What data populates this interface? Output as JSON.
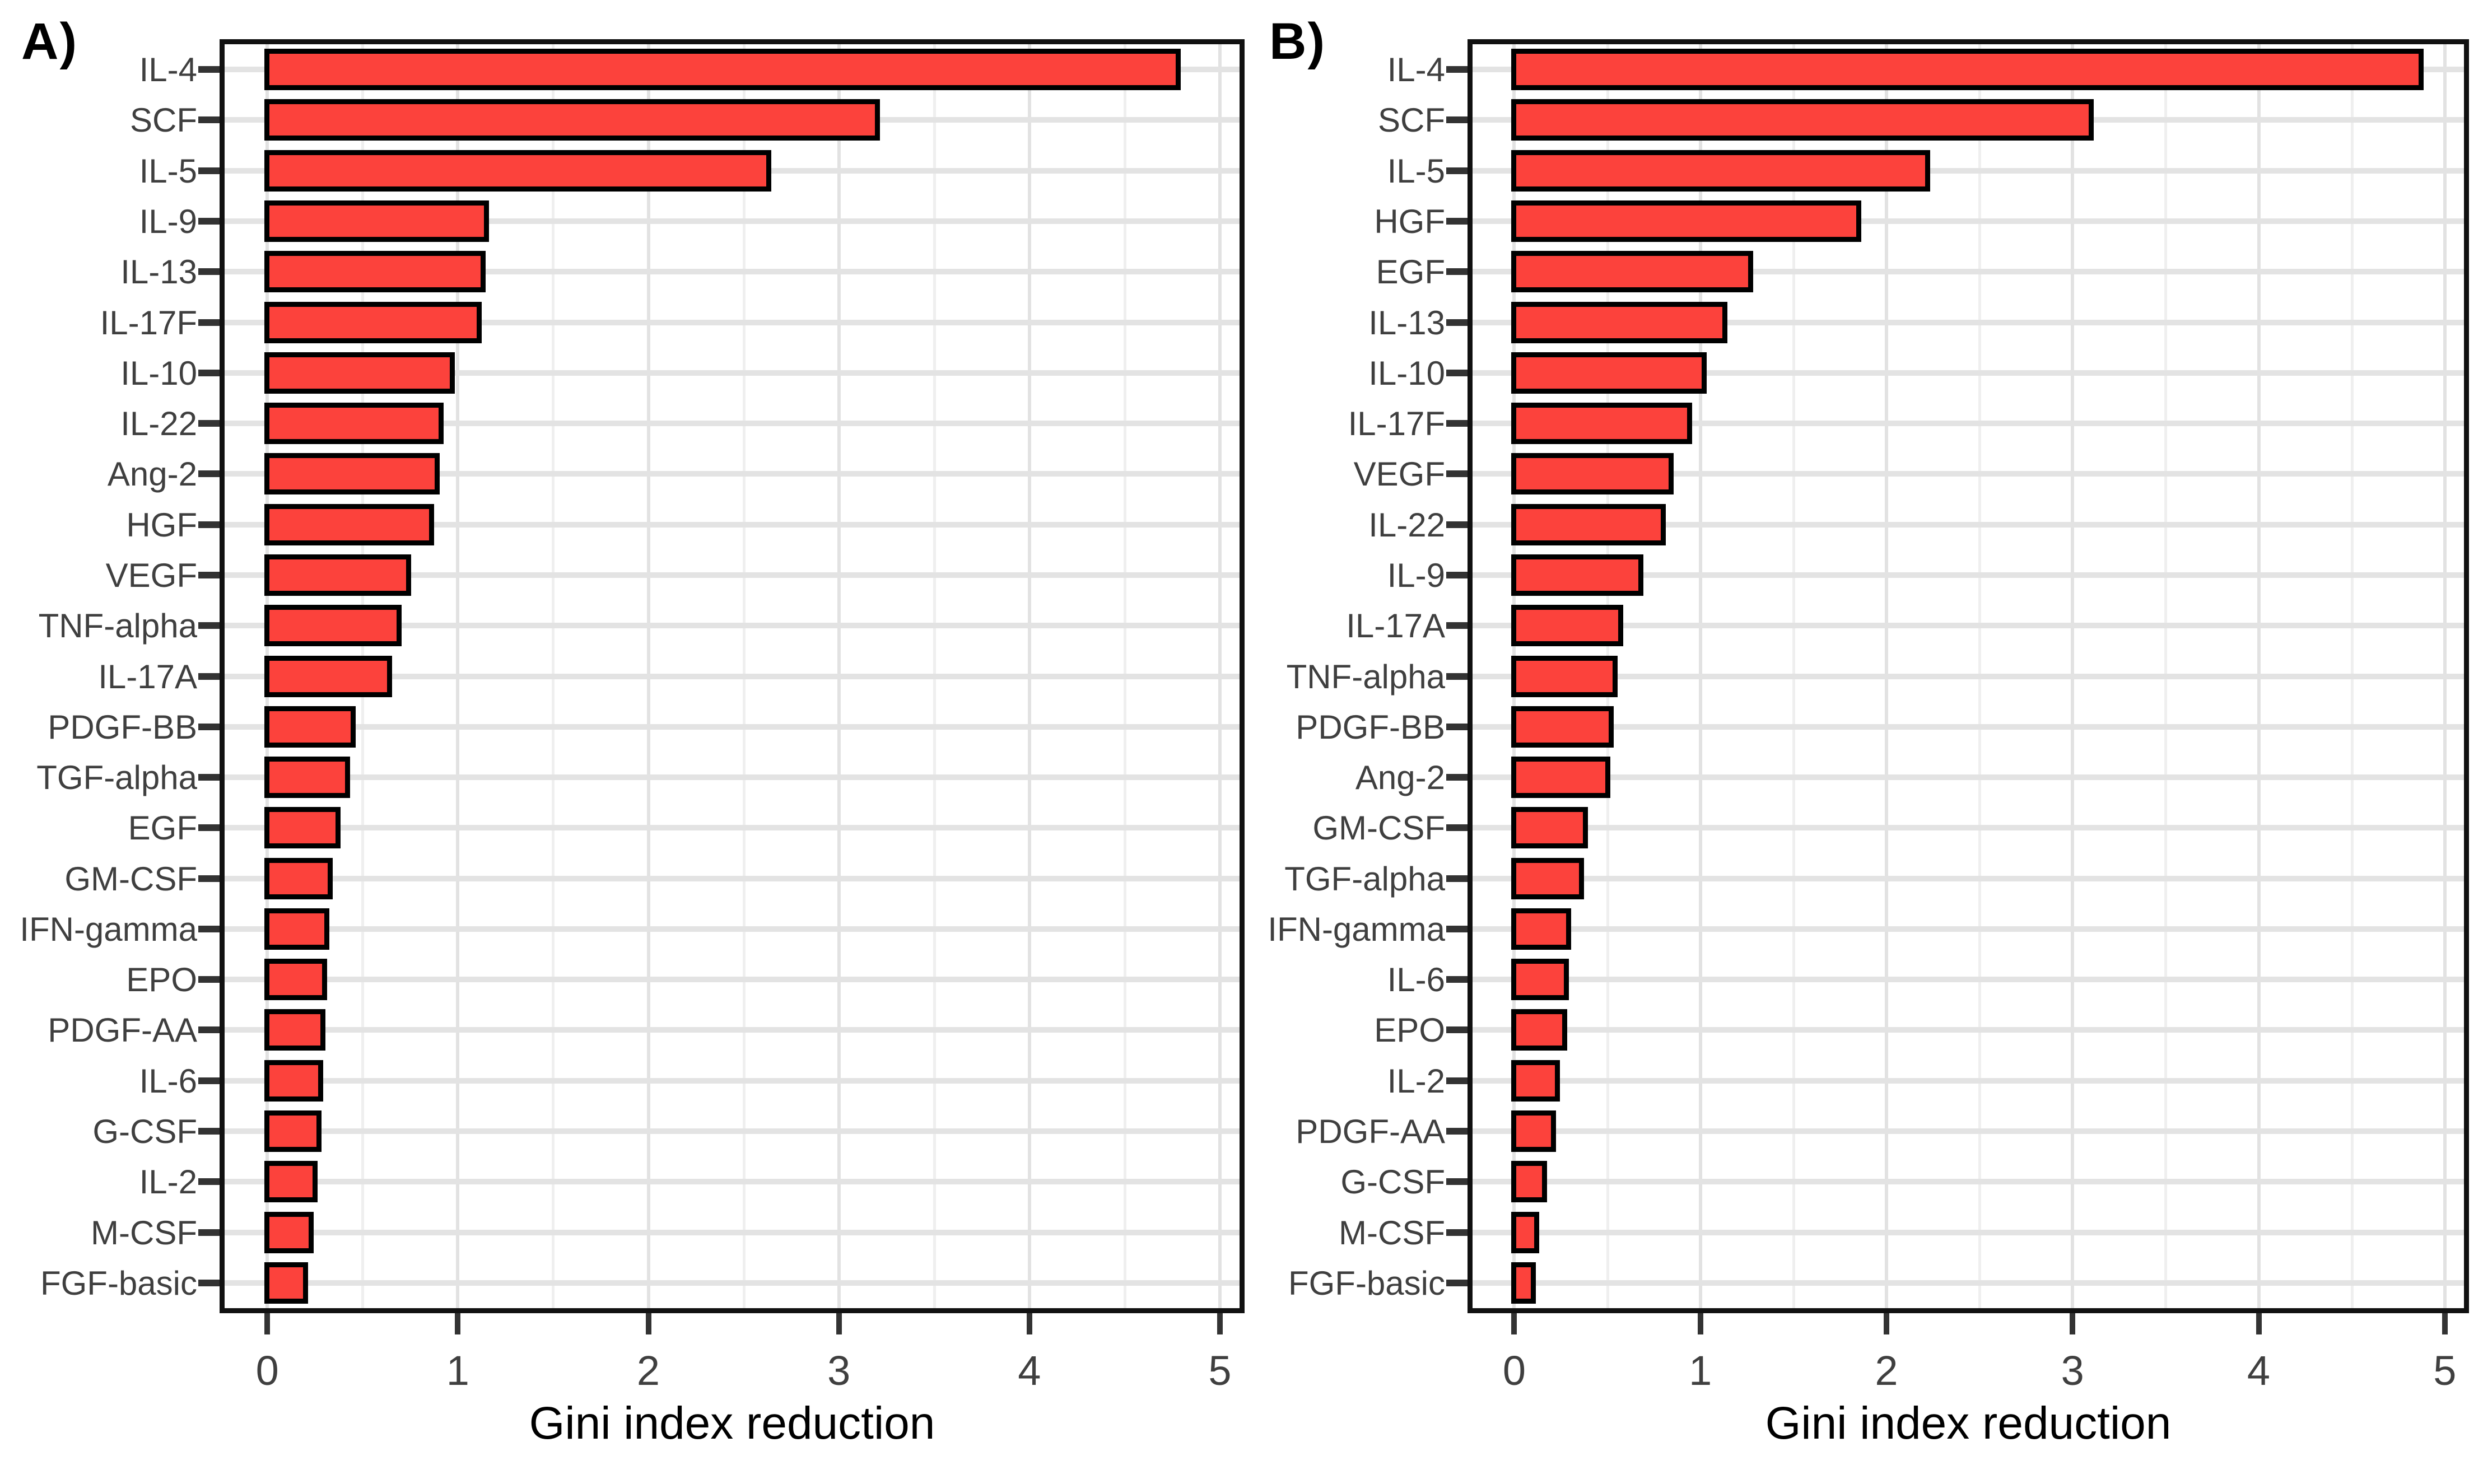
{
  "figure_kind": "two-panel horizontal bar chart, variable importance",
  "bar_color": "#fc423c",
  "bar_border_color": "#000000",
  "chart_data": [
    {
      "type": "bar",
      "orientation": "horizontal",
      "title": "A)",
      "xlabel": "Gini index reduction",
      "xlim": [
        0,
        5
      ],
      "x_ticks": [
        "0",
        "1",
        "2",
        "3",
        "4",
        "5"
      ],
      "grid": true,
      "legend": false,
      "categories": [
        "IL-4",
        "SCF",
        "IL-5",
        "IL-9",
        "IL-13",
        "IL-17F",
        "IL-10",
        "IL-22",
        "Ang-2",
        "HGF",
        "VEGF",
        "TNF-alpha",
        "IL-17A",
        "PDGF-BB",
        "TGF-alpha",
        "EGF",
        "GM-CSF",
        "IFN-gamma",
        "EPO",
        "PDGF-AA",
        "IL-6",
        "G-CSF",
        "IL-2",
        "M-CSF",
        "FGF-basic"
      ],
      "values": [
        4.78,
        3.2,
        2.63,
        1.15,
        1.13,
        1.11,
        0.97,
        0.91,
        0.89,
        0.86,
        0.74,
        0.69,
        0.64,
        0.45,
        0.42,
        0.37,
        0.33,
        0.31,
        0.3,
        0.29,
        0.28,
        0.27,
        0.25,
        0.23,
        0.2
      ]
    },
    {
      "type": "bar",
      "orientation": "horizontal",
      "title": "B)",
      "xlabel": "Gini index reduction",
      "xlim": [
        0,
        5
      ],
      "x_ticks": [
        "0",
        "1",
        "2",
        "3",
        "4",
        "5"
      ],
      "grid": true,
      "legend": false,
      "categories": [
        "IL-4",
        "SCF",
        "IL-5",
        "HGF",
        "EGF",
        "IL-13",
        "IL-10",
        "IL-17F",
        "VEGF",
        "IL-22",
        "IL-9",
        "IL-17A",
        "TNF-alpha",
        "PDGF-BB",
        "Ang-2",
        "GM-CSF",
        "TGF-alpha",
        "IFN-gamma",
        "IL-6",
        "EPO",
        "IL-2",
        "PDGF-AA",
        "G-CSF",
        "M-CSF",
        "FGF-basic"
      ],
      "values": [
        4.87,
        3.1,
        2.22,
        1.85,
        1.27,
        1.13,
        1.02,
        0.94,
        0.84,
        0.8,
        0.68,
        0.57,
        0.54,
        0.52,
        0.5,
        0.38,
        0.36,
        0.29,
        0.28,
        0.27,
        0.23,
        0.21,
        0.16,
        0.12,
        0.1
      ]
    }
  ]
}
